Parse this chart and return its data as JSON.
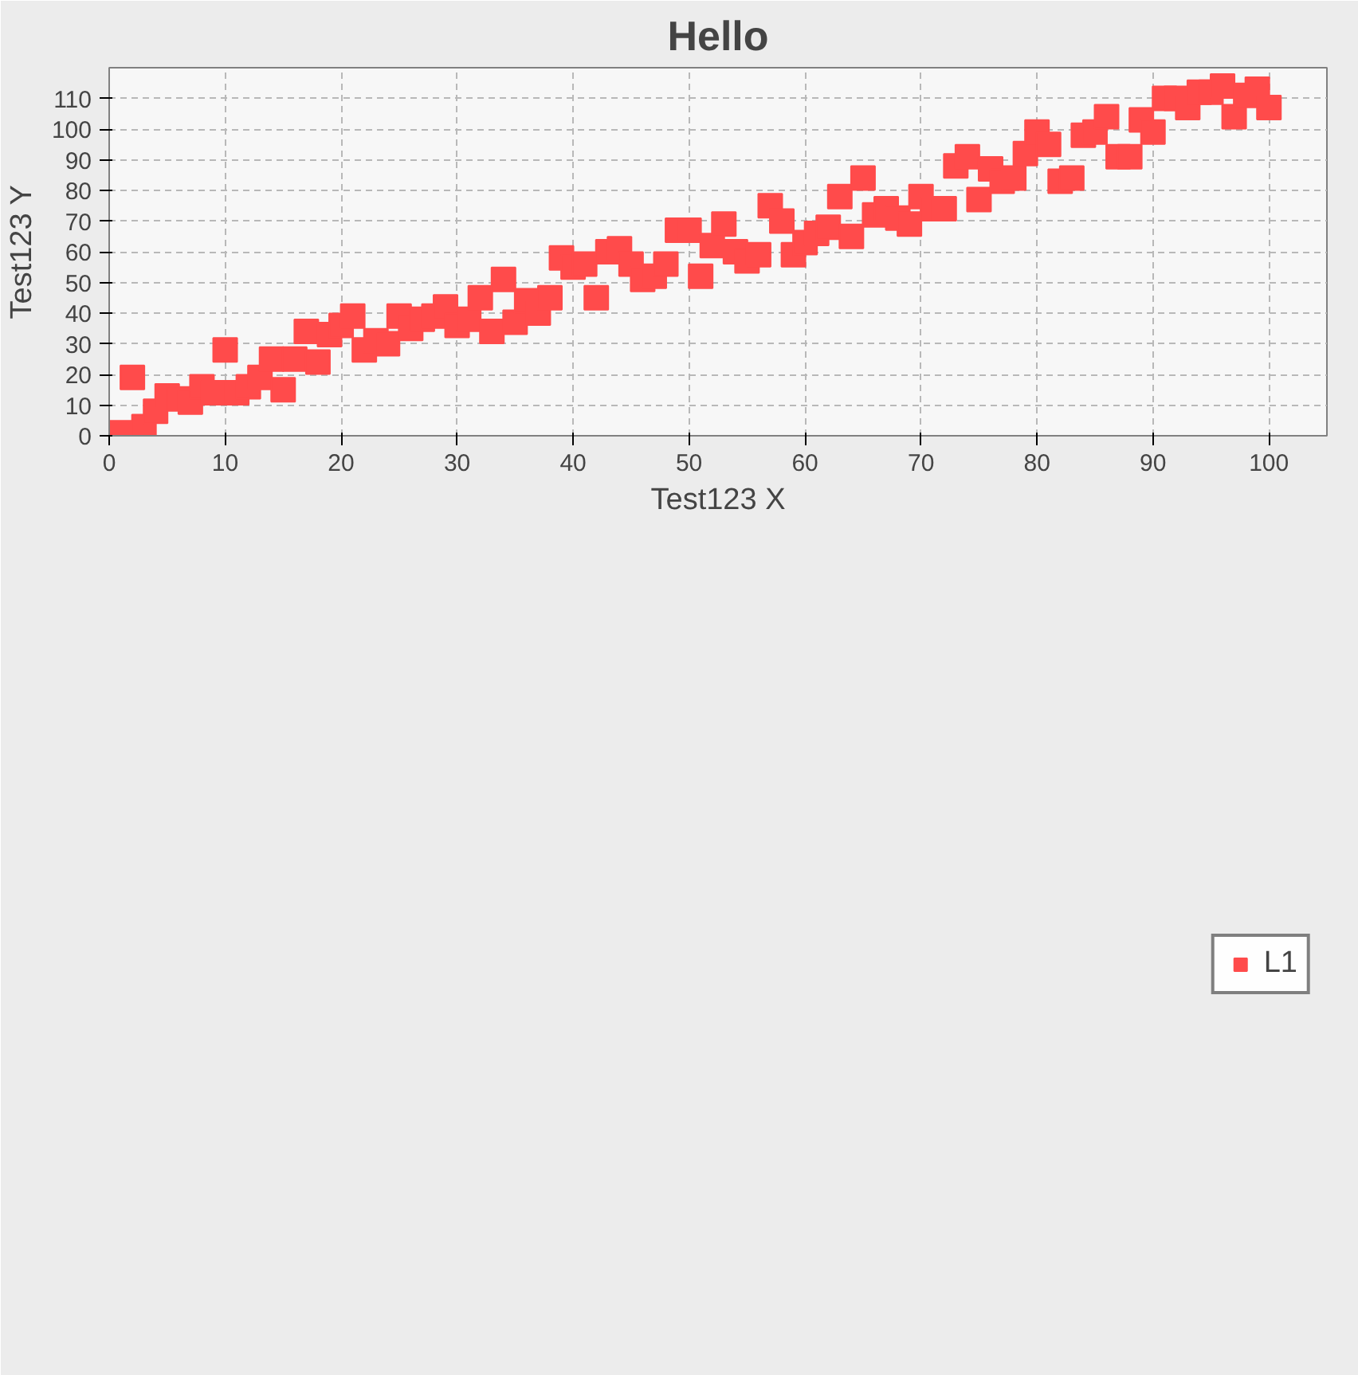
{
  "chart_data": {
    "type": "scatter",
    "title": "Hello",
    "xlabel": "Test123 X",
    "ylabel": "Test123 Y",
    "x": [
      1,
      2,
      3,
      4,
      5,
      6,
      7,
      8,
      9,
      10,
      11,
      12,
      13,
      14,
      15,
      16,
      17,
      18,
      19,
      20,
      21,
      22,
      23,
      24,
      25,
      26,
      27,
      28,
      29,
      30,
      31,
      32,
      33,
      34,
      35,
      36,
      37,
      38,
      39,
      40,
      41,
      42,
      43,
      44,
      45,
      46,
      47,
      48,
      49,
      50,
      51,
      52,
      53,
      54,
      55,
      56,
      57,
      58,
      59,
      60,
      61,
      62,
      63,
      64,
      65,
      66,
      67,
      68,
      69,
      70,
      71,
      72,
      73,
      74,
      75,
      76,
      77,
      78,
      79,
      80,
      81,
      82,
      83,
      84,
      85,
      86,
      87,
      88,
      89,
      90,
      91,
      92,
      93,
      94,
      95,
      96,
      97,
      98,
      99,
      100
    ],
    "series": [
      {
        "name": "L1",
        "color": "#ff4b4b",
        "values": [
          1,
          19,
          3,
          8,
          13,
          12,
          11,
          16,
          14,
          28,
          14,
          16,
          19,
          25,
          15,
          25,
          34,
          24,
          33,
          36,
          39,
          28,
          31,
          30,
          39,
          35,
          38,
          39,
          42,
          36,
          38,
          45,
          34,
          51,
          37,
          44,
          40,
          45,
          58,
          55,
          56,
          45,
          60,
          61,
          56,
          51,
          52,
          56,
          67,
          67,
          52,
          62,
          69,
          60,
          57,
          59,
          75,
          70,
          59,
          63,
          66,
          68,
          78,
          65,
          84,
          72,
          74,
          71,
          69,
          78,
          74,
          74,
          88,
          91,
          77,
          87,
          83,
          84,
          92,
          99,
          95,
          83,
          84,
          98,
          99,
          104,
          91,
          91,
          103,
          99,
          110,
          110,
          107,
          112,
          112,
          114,
          104,
          111,
          113,
          107
        ]
      }
    ],
    "xlim": [
      0,
      105
    ],
    "ylim": [
      0,
      120
    ],
    "xticks": [
      0,
      10,
      20,
      30,
      40,
      50,
      60,
      70,
      80,
      90,
      100
    ],
    "yticks": [
      0,
      10,
      20,
      30,
      40,
      50,
      60,
      70,
      80,
      90,
      100,
      110
    ],
    "grid": true,
    "legend": "bottom",
    "marker": "square"
  }
}
